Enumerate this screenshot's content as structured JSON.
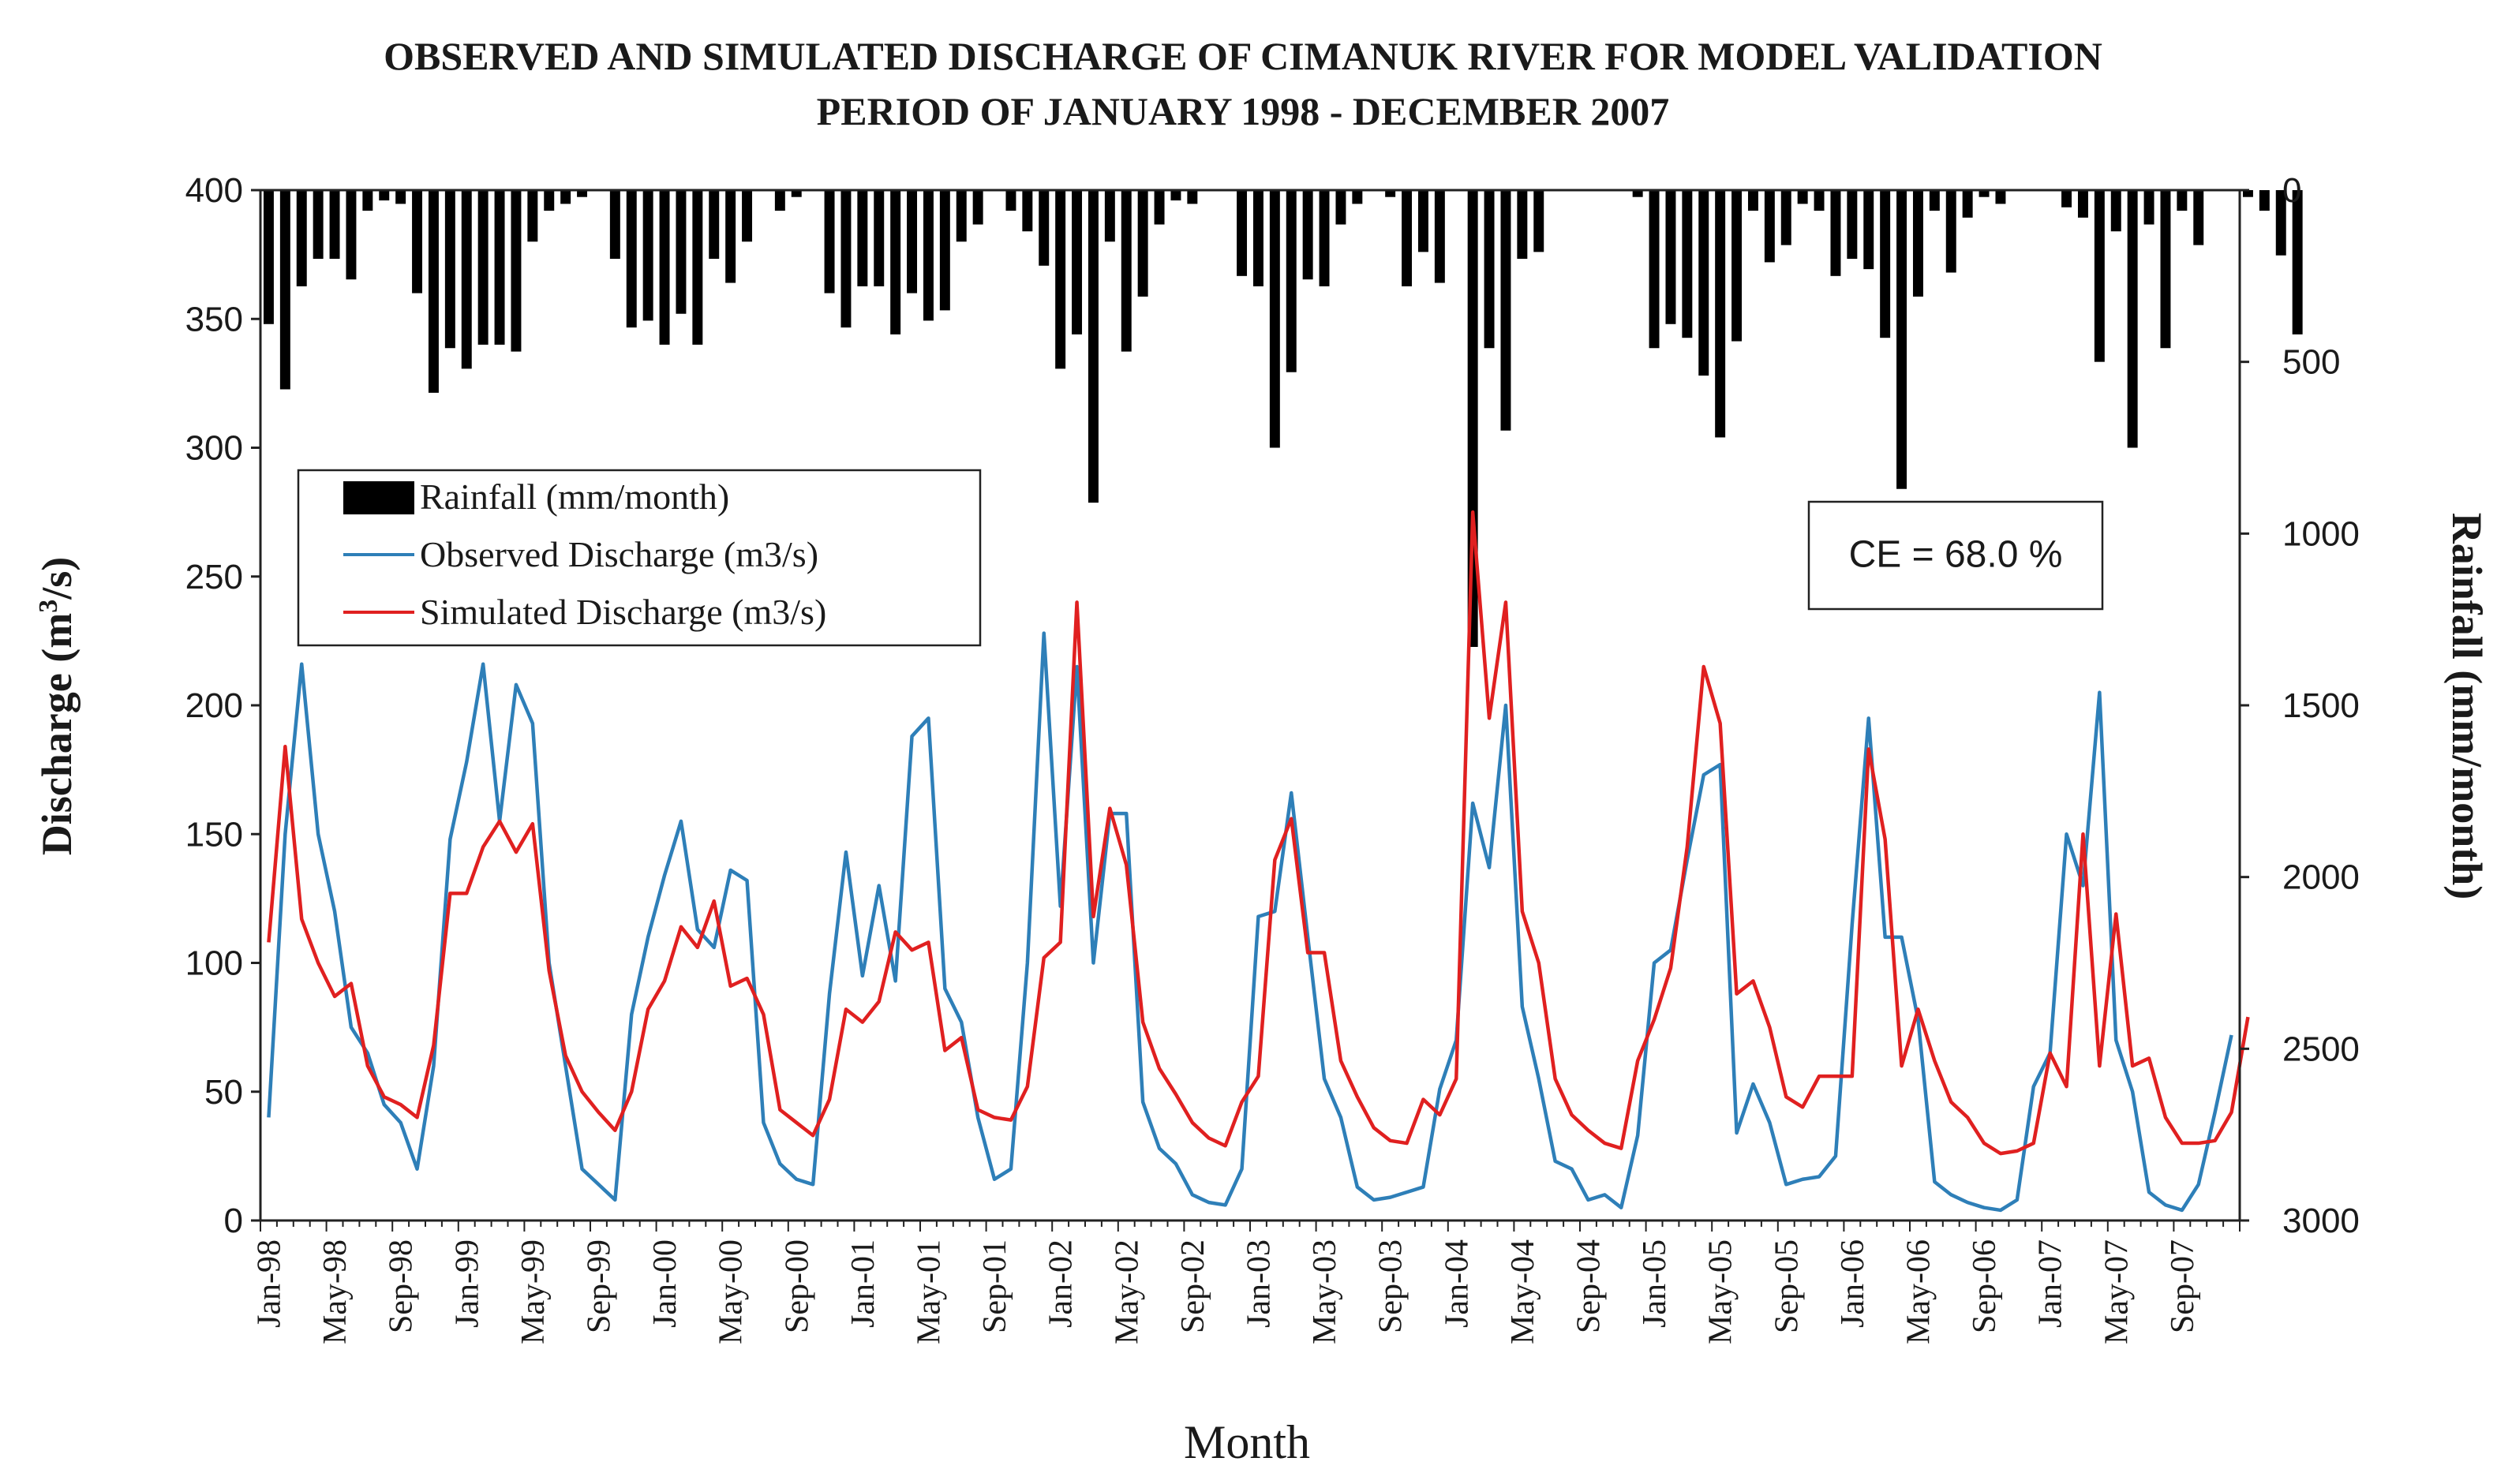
{
  "chart_data": {
    "type": "line",
    "title_line1": "OBSERVED AND SIMULATED DISCHARGE OF CIMANUK RIVER FOR MODEL VALIDATION",
    "title_line2": "PERIOD OF JANUARY 1998 - DECEMBER 2007",
    "ylabel_main": "Discharge (m",
    "ylabel_sup": "3",
    "ylabel_end": "/s)",
    "y2label": "Rainfall (mm/month)",
    "xlabel": "Month",
    "ylim": [
      0,
      400
    ],
    "y2lim": [
      0,
      3000
    ],
    "y_ticks": [
      "0",
      "50",
      "100",
      "150",
      "200",
      "250",
      "300",
      "350",
      "400"
    ],
    "y2_ticks": [
      "0",
      "500",
      "1000",
      "1500",
      "2000",
      "2500",
      "3000"
    ],
    "x_tick_labels": [
      "Jan-98",
      "May-98",
      "Sep-98",
      "Jan-99",
      "May-99",
      "Sep-99",
      "Jan-00",
      "May-00",
      "Sep-00",
      "Jan-01",
      "May-01",
      "Sep-01",
      "Jan-02",
      "May-02",
      "Sep-02",
      "Jan-03",
      "May-03",
      "Sep-03",
      "Jan-04",
      "May-04",
      "Sep-04",
      "Jan-05",
      "May-05",
      "Sep-05",
      "Jan-06",
      "May-06",
      "Sep-06",
      "Jan-07",
      "May-07",
      "Sep-07"
    ],
    "x_tick_step_months": 4,
    "n_months": 120,
    "legend": {
      "rainfall": "Rainfall (mm/month)",
      "observed": "Observed Discharge (m3/s)",
      "simulated": "Simulated Discharge (m3/s)"
    },
    "annotation": "CE = 68.0 %",
    "colors": {
      "rainfall": "#000000",
      "observed": "#2e7fb8",
      "simulated": "#e02020"
    },
    "series": [
      {
        "name": "Rainfall (mm/month)",
        "axis": "secondary",
        "kind": "bar",
        "values": [
          390,
          580,
          280,
          200,
          200,
          260,
          60,
          30,
          40,
          300,
          590,
          460,
          520,
          450,
          450,
          470,
          150,
          60,
          40,
          20,
          0,
          200,
          400,
          380,
          450,
          360,
          450,
          200,
          270,
          150,
          0,
          60,
          20,
          0,
          300,
          400,
          280,
          280,
          420,
          300,
          380,
          350,
          150,
          100,
          0,
          60,
          120,
          220,
          520,
          420,
          910,
          150,
          470,
          310,
          100,
          30,
          40,
          0,
          0,
          250,
          280,
          750,
          530,
          260,
          280,
          100,
          40,
          0,
          20,
          280,
          180,
          270,
          0,
          1330,
          460,
          700,
          200,
          180,
          0,
          0,
          0,
          0,
          0,
          20,
          460,
          390,
          430,
          540,
          720,
          440,
          60,
          210,
          160,
          40,
          60,
          250,
          200,
          230,
          430,
          870,
          310,
          60,
          240,
          80,
          20,
          40,
          0,
          0,
          0,
          50,
          80,
          500,
          120,
          750,
          100,
          460,
          60,
          160,
          0,
          0,
          20,
          60,
          190,
          420
        ]
      },
      {
        "name": "Observed Discharge (m3/s)",
        "axis": "primary",
        "values": [
          40,
          150,
          216,
          150,
          120,
          75,
          65,
          45,
          38,
          20,
          60,
          148,
          178,
          216,
          155,
          208,
          193,
          100,
          60,
          20,
          14,
          8,
          80,
          110,
          134,
          155,
          113,
          106,
          136,
          132,
          38,
          22,
          16,
          14,
          88,
          143,
          95,
          130,
          93,
          188,
          195,
          90,
          77,
          40,
          16,
          20,
          100,
          228,
          122,
          215,
          100,
          158,
          158,
          46,
          28,
          22,
          10,
          7,
          6,
          20,
          118,
          120,
          166,
          110,
          55,
          40,
          13,
          8,
          9,
          11,
          13,
          51,
          70,
          162,
          137,
          200,
          83,
          55,
          23,
          20,
          8,
          10,
          5,
          33,
          100,
          105,
          140,
          173,
          177,
          34,
          53,
          38,
          14,
          16,
          17,
          25,
          115,
          195,
          110,
          110,
          78,
          15,
          10,
          7,
          5,
          4,
          8,
          52,
          65,
          150,
          130,
          205,
          70,
          50,
          11,
          6,
          4,
          14,
          42,
          72
        ]
      },
      {
        "name": "Simulated Discharge (m3/s)",
        "axis": "primary",
        "values": [
          108,
          184,
          117,
          100,
          87,
          92,
          60,
          48,
          45,
          40,
          68,
          127,
          127,
          145,
          155,
          143,
          154,
          97,
          64,
          50,
          42,
          35,
          50,
          82,
          93,
          114,
          106,
          124,
          91,
          94,
          80,
          43,
          38,
          33,
          47,
          82,
          77,
          85,
          112,
          105,
          108,
          66,
          71,
          43,
          40,
          39,
          52,
          102,
          108,
          240,
          118,
          160,
          138,
          77,
          59,
          49,
          38,
          32,
          29,
          46,
          56,
          140,
          156,
          104,
          104,
          62,
          48,
          36,
          31,
          30,
          47,
          41,
          55,
          275,
          195,
          240,
          120,
          100,
          55,
          41,
          35,
          30,
          28,
          62,
          78,
          98,
          145,
          215,
          193,
          88,
          93,
          75,
          48,
          44,
          56,
          56,
          56,
          183,
          148,
          60,
          82,
          62,
          46,
          40,
          30,
          26,
          27,
          30,
          65,
          52,
          150,
          60,
          119,
          60,
          63,
          40,
          30,
          30,
          31,
          42,
          79
        ]
      }
    ]
  }
}
